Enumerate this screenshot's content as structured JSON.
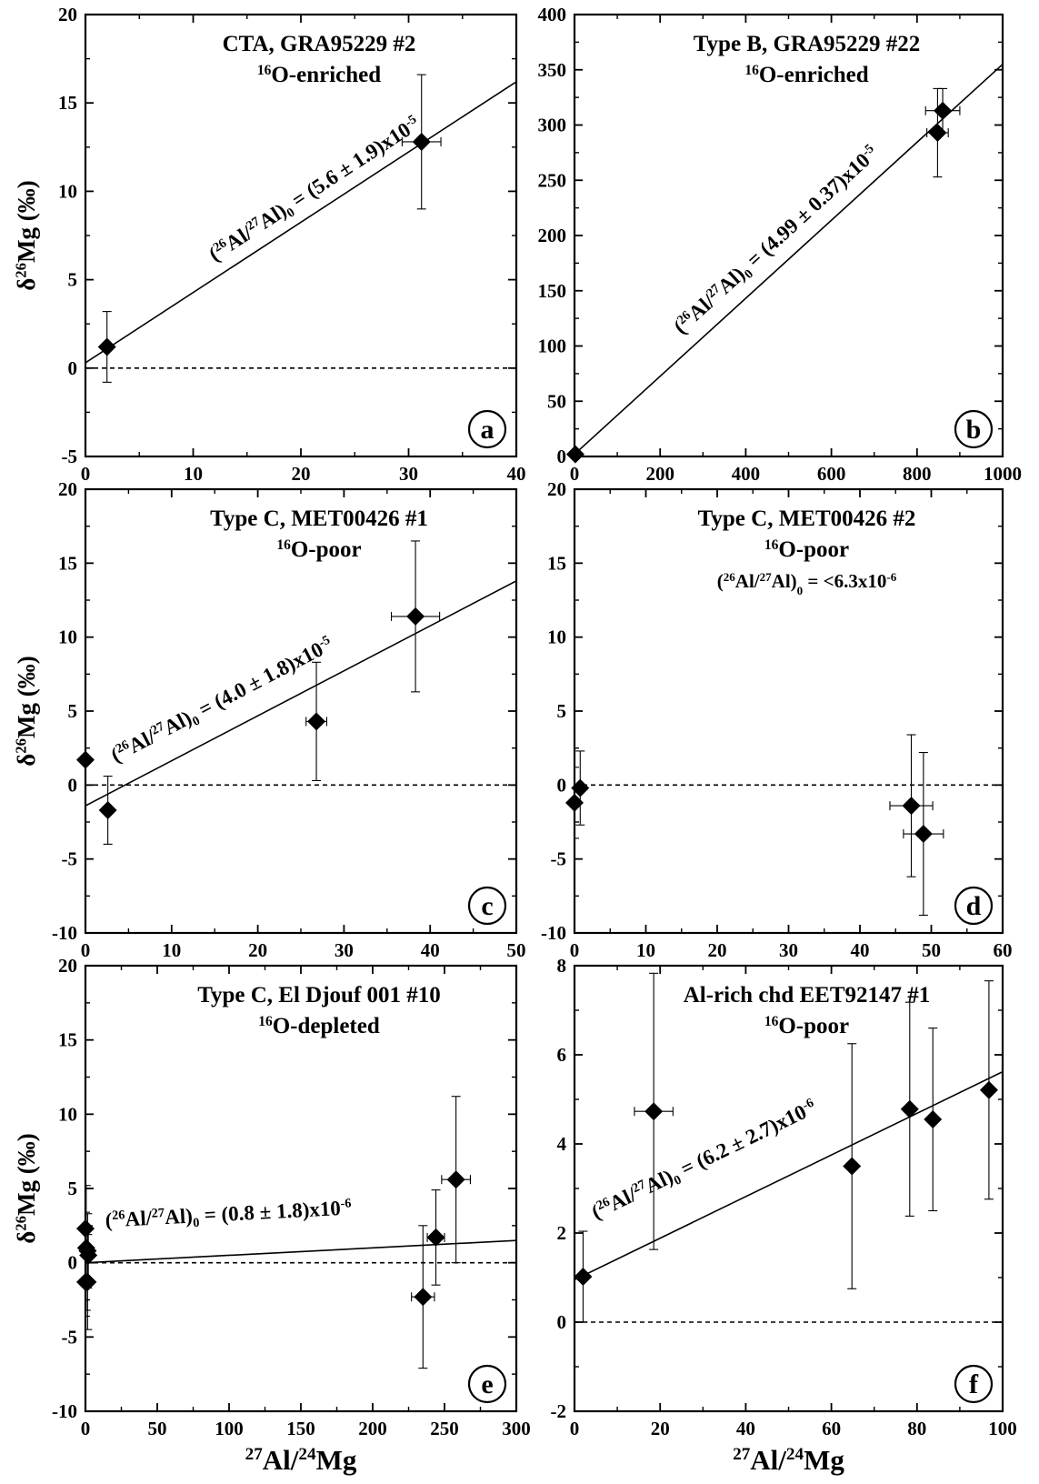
{
  "chart_data": [
    {
      "panel_letter": "a",
      "type": "scatter",
      "title_lines": [
        {
          "segments": [
            {
              "text": "CTA, GRA95229 #2"
            }
          ]
        },
        {
          "segments": [
            {
              "text": "16",
              "sup": true
            },
            {
              "text": "O-enriched"
            }
          ]
        }
      ],
      "xlim": [
        0,
        40
      ],
      "xticks": [
        0,
        10,
        20,
        30,
        40
      ],
      "ylim": [
        -5,
        20
      ],
      "yticks": [
        -5,
        0,
        5,
        10,
        15,
        20
      ],
      "ylabel": "δ26Mg (‰)",
      "xlabel": "",
      "points": [
        {
          "x": 2.0,
          "y": 1.2,
          "xerr": 0,
          "yerr": 2.0
        },
        {
          "x": 31.2,
          "y": 12.8,
          "xerr": 1.8,
          "yerr": 3.8
        }
      ],
      "fit": {
        "x": [
          0,
          40
        ],
        "y": [
          0.3,
          16.2
        ]
      },
      "fit_label": "(26Al/27Al)0 = (5.6 ± 1.9)x10-5",
      "fit_label_anchor": {
        "x": 12,
        "y": 6
      }
    },
    {
      "panel_letter": "b",
      "type": "scatter",
      "title_lines": [
        {
          "segments": [
            {
              "text": "Type B, GRA95229 #22"
            }
          ]
        },
        {
          "segments": [
            {
              "text": "16",
              "sup": true
            },
            {
              "text": "O-enriched"
            }
          ]
        }
      ],
      "xlim": [
        0,
        1000
      ],
      "xticks": [
        0,
        200,
        400,
        600,
        800,
        1000
      ],
      "ylim": [
        0,
        400
      ],
      "yticks": [
        0,
        50,
        100,
        150,
        200,
        250,
        300,
        350,
        400
      ],
      "ylabel": "",
      "xlabel": "",
      "points": [
        {
          "x": 2,
          "y": 2,
          "xerr": 0,
          "yerr": 0
        },
        {
          "x": 848,
          "y": 293,
          "xerr": 25,
          "yerr": 40
        },
        {
          "x": 860,
          "y": 313,
          "xerr": 40,
          "yerr": 20
        }
      ],
      "fit": {
        "x": [
          0,
          1000
        ],
        "y": [
          2,
          355
        ]
      },
      "fit_label": "(26Al/27Al)0 = (4.99 ± 0.37)x10-5",
      "fit_label_anchor": {
        "x": 250,
        "y": 110
      }
    },
    {
      "panel_letter": "c",
      "type": "scatter",
      "title_lines": [
        {
          "segments": [
            {
              "text": "Type C, MET00426 #1"
            }
          ]
        },
        {
          "segments": [
            {
              "text": "16",
              "sup": true
            },
            {
              "text": "O-poor"
            }
          ]
        }
      ],
      "xlim": [
        0,
        50
      ],
      "xticks": [
        0,
        10,
        20,
        30,
        40,
        50
      ],
      "ylim": [
        -10,
        20
      ],
      "yticks": [
        -10,
        -5,
        0,
        5,
        10,
        15,
        20
      ],
      "ylabel": "δ26Mg (‰)",
      "xlabel": "",
      "points": [
        {
          "x": 0,
          "y": 1.7,
          "xerr": 0,
          "yerr": 0
        },
        {
          "x": 2.6,
          "y": -1.7,
          "xerr": 0,
          "yerr": 2.3
        },
        {
          "x": 26.8,
          "y": 4.3,
          "xerr": 1.2,
          "yerr": 4.0
        },
        {
          "x": 38.3,
          "y": 11.4,
          "xerr": 2.8,
          "yerr": 5.1
        }
      ],
      "fit": {
        "x": [
          0,
          50
        ],
        "y": [
          -1.4,
          13.8
        ]
      },
      "fit_label": "(26Al/27Al)0 = (4.0 ± 1.8)x10-5",
      "fit_label_anchor": {
        "x": 3.5,
        "y": 1.5
      }
    },
    {
      "panel_letter": "d",
      "type": "scatter",
      "title_lines": [
        {
          "segments": [
            {
              "text": "Type C, MET00426 #2"
            }
          ]
        },
        {
          "segments": [
            {
              "text": "16",
              "sup": true
            },
            {
              "text": "O-poor"
            }
          ]
        },
        {
          "segments": [
            {
              "text": "("
            },
            {
              "text": "26",
              "sup": true
            },
            {
              "text": "Al/"
            },
            {
              "text": "27",
              "sup": true
            },
            {
              "text": "Al)"
            },
            {
              "text": "0",
              "sub": true
            },
            {
              "text": " = <6.3x10"
            },
            {
              "text": "-6",
              "sup": true
            }
          ],
          "small": true
        }
      ],
      "xlim": [
        0,
        60
      ],
      "xticks": [
        0,
        10,
        20,
        30,
        40,
        50,
        60
      ],
      "ylim": [
        -10,
        20
      ],
      "yticks": [
        -10,
        -5,
        0,
        5,
        10,
        15,
        20
      ],
      "ylabel": "",
      "xlabel": "",
      "points": [
        {
          "x": 0,
          "y": -1.2,
          "xerr": 0,
          "yerr": 2.4
        },
        {
          "x": 0.8,
          "y": -0.2,
          "xerr": 0,
          "yerr": 2.5
        },
        {
          "x": 47.2,
          "y": -1.4,
          "xerr": 3.0,
          "yerr": 4.8
        },
        {
          "x": 48.9,
          "y": -3.3,
          "xerr": 2.8,
          "yerr": 5.5
        }
      ],
      "fit": null,
      "fit_label": "",
      "fit_label_anchor": null
    },
    {
      "panel_letter": "e",
      "type": "scatter",
      "title_lines": [
        {
          "segments": [
            {
              "text": "Type C, El Djouf 001 #10"
            }
          ]
        },
        {
          "segments": [
            {
              "text": "16",
              "sup": true
            },
            {
              "text": "O-depleted"
            }
          ]
        }
      ],
      "xlim": [
        0,
        300
      ],
      "xticks": [
        0,
        50,
        100,
        150,
        200,
        250,
        300
      ],
      "ylim": [
        -10,
        20
      ],
      "yticks": [
        -10,
        -5,
        0,
        5,
        10,
        15,
        20
      ],
      "ylabel": "δ26Mg (‰)",
      "xlabel": "27Al/24Mg",
      "points": [
        {
          "x": 0,
          "y": 2.3,
          "xerr": 0,
          "yerr": 1.1
        },
        {
          "x": 0.5,
          "y": 1.0,
          "xerr": 0,
          "yerr": 4.2
        },
        {
          "x": 1.5,
          "y": 0.8,
          "xerr": 0,
          "yerr": 2.5
        },
        {
          "x": 2.0,
          "y": 0.5,
          "xerr": 0,
          "yerr": 2.0
        },
        {
          "x": 0,
          "y": -1.3,
          "xerr": 0,
          "yerr": 2.3
        },
        {
          "x": 1.5,
          "y": -1.3,
          "xerr": 0,
          "yerr": 3.2
        },
        {
          "x": 235,
          "y": -2.3,
          "xerr": 8,
          "yerr": 4.8
        },
        {
          "x": 244,
          "y": 1.7,
          "xerr": 6,
          "yerr": 3.2
        },
        {
          "x": 258,
          "y": 5.6,
          "xerr": 10,
          "yerr": 5.6
        }
      ],
      "fit": {
        "x": [
          0,
          300
        ],
        "y": [
          0.0,
          1.5
        ]
      },
      "fit_label": "(26Al/27Al)0 = (0.8 ± 1.8)x10-6",
      "fit_label_anchor": {
        "x": 14,
        "y": 2.4
      }
    },
    {
      "panel_letter": "f",
      "type": "scatter",
      "title_lines": [
        {
          "segments": [
            {
              "text": "Al-rich chd EET92147 #1"
            }
          ]
        },
        {
          "segments": [
            {
              "text": "16",
              "sup": true
            },
            {
              "text": "O-poor"
            }
          ]
        }
      ],
      "xlim": [
        0,
        100
      ],
      "xticks": [
        0,
        20,
        40,
        60,
        80,
        100
      ],
      "ylim": [
        -2,
        8
      ],
      "yticks": [
        -2,
        0,
        2,
        4,
        6,
        8
      ],
      "ylabel": "",
      "xlabel": "27Al/24Mg",
      "points": [
        {
          "x": 2.0,
          "y": 1.02,
          "xerr": 0,
          "yerr": 1.02
        },
        {
          "x": 18.5,
          "y": 4.73,
          "xerr": 4.5,
          "yerr": 3.1
        },
        {
          "x": 64.8,
          "y": 3.5,
          "xerr": 0,
          "yerr": 2.75
        },
        {
          "x": 78.3,
          "y": 4.78,
          "xerr": 0,
          "yerr": 2.4
        },
        {
          "x": 83.7,
          "y": 4.55,
          "xerr": 0,
          "yerr": 2.05
        },
        {
          "x": 96.8,
          "y": 5.21,
          "xerr": 0,
          "yerr": 2.45
        }
      ],
      "fit": {
        "x": [
          0,
          100
        ],
        "y": [
          0.95,
          5.62
        ]
      },
      "fit_label": "(26Al/27Al)0 = (6.2 ± 2.7)x10-6",
      "fit_label_anchor": {
        "x": 5,
        "y": 2.3
      }
    }
  ]
}
